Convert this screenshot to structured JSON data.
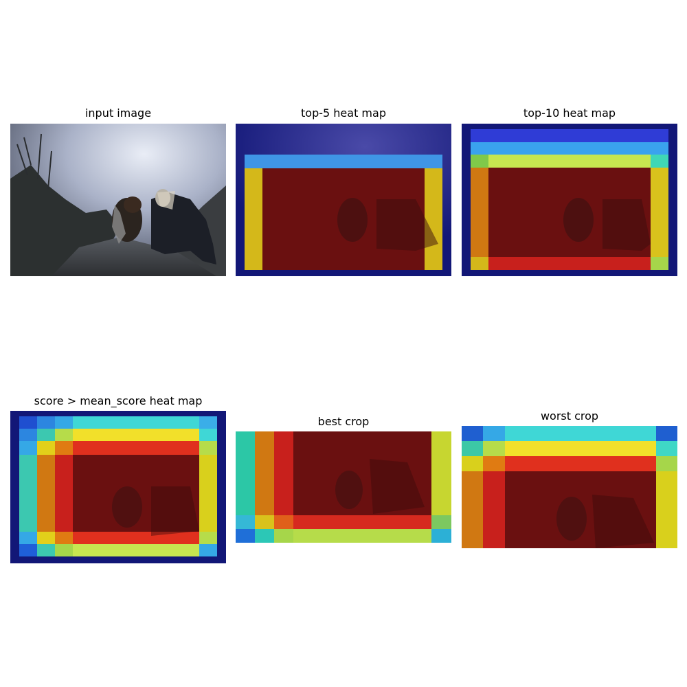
{
  "figure": {
    "panels": [
      {
        "title": "input image"
      },
      {
        "title": "top-5 heat map"
      },
      {
        "title": "top-10 heat map"
      },
      {
        "title": "score > mean_score heat map"
      },
      {
        "title": "best crop"
      },
      {
        "title": "worst crop"
      }
    ]
  },
  "colors": {
    "navy": "#0d0f74",
    "blue": "#2f3cd6",
    "mid_blue": "#3aa2ee",
    "cyan": "#3fd7d6",
    "teal": "#2cc7a6",
    "green_yellow": "#c7e650",
    "yellow": "#f2d824",
    "orange": "#e07b12",
    "red": "#d62a1f",
    "dark_red": "#6a0f0f"
  }
}
